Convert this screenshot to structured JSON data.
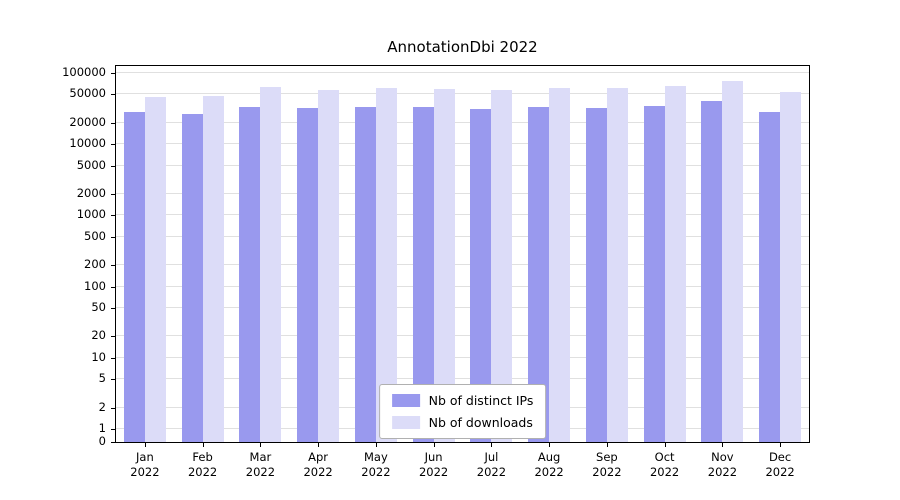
{
  "chart_data": {
    "type": "bar",
    "title": "AnnotationDbi 2022",
    "categories": [
      "Jan",
      "Feb",
      "Mar",
      "Apr",
      "May",
      "Jun",
      "Jul",
      "Aug",
      "Sep",
      "Oct",
      "Nov",
      "Dec"
    ],
    "category_year": "2022",
    "series": [
      {
        "name": "Nb of distinct IPs",
        "color": "#9999ee",
        "values": [
          28000,
          27000,
          33000,
          32000,
          33000,
          33000,
          31000,
          33000,
          32000,
          35000,
          40000,
          28000
        ]
      },
      {
        "name": "Nb of downloads",
        "color": "#dcdcf8",
        "values": [
          46000,
          48000,
          63000,
          58000,
          61000,
          59000,
          57000,
          61000,
          61000,
          66000,
          77000,
          55000
        ]
      }
    ],
    "ylabel": "",
    "xlabel": "",
    "yscale": "log-1-2-5-with-zero-baseline",
    "yticks": [
      0,
      1,
      2,
      5,
      10,
      20,
      50,
      100,
      200,
      500,
      1000,
      2000,
      5000,
      10000,
      20000,
      50000,
      100000
    ],
    "ylim": [
      0,
      100000
    ],
    "grid": true,
    "grid_color": "#e0e0e0",
    "axis_border_color": "#000000",
    "legend_position": "bottom-center"
  }
}
